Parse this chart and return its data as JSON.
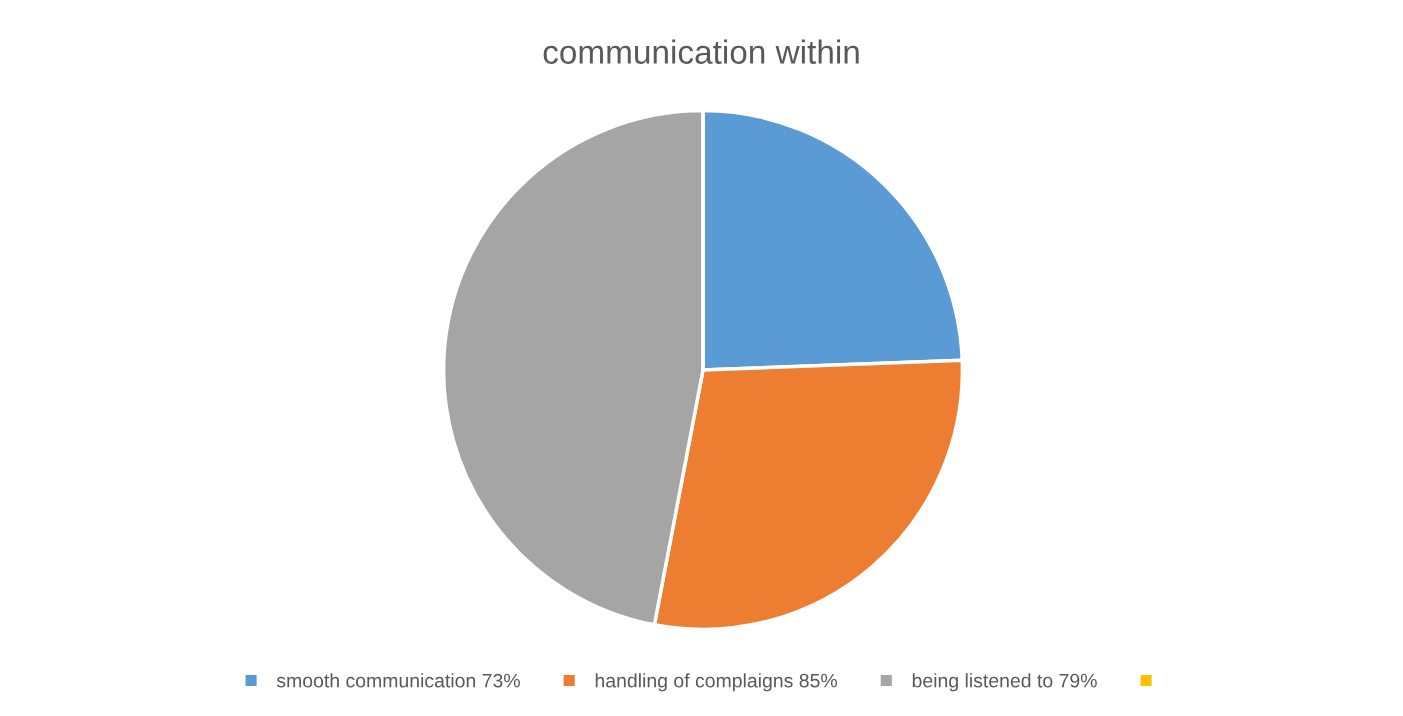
{
  "chart_data": {
    "type": "pie",
    "title": "communication within",
    "categories": [
      "smooth communication 73%",
      "handling of complaigns 85%",
      "being listened to 79%",
      null
    ],
    "values": [
      24.4,
      28.6,
      47.0,
      0
    ],
    "colors": [
      "#5b9bd5",
      "#ed7d31",
      "#a5a5a5",
      "#ffc000"
    ],
    "legend": "bottom"
  }
}
